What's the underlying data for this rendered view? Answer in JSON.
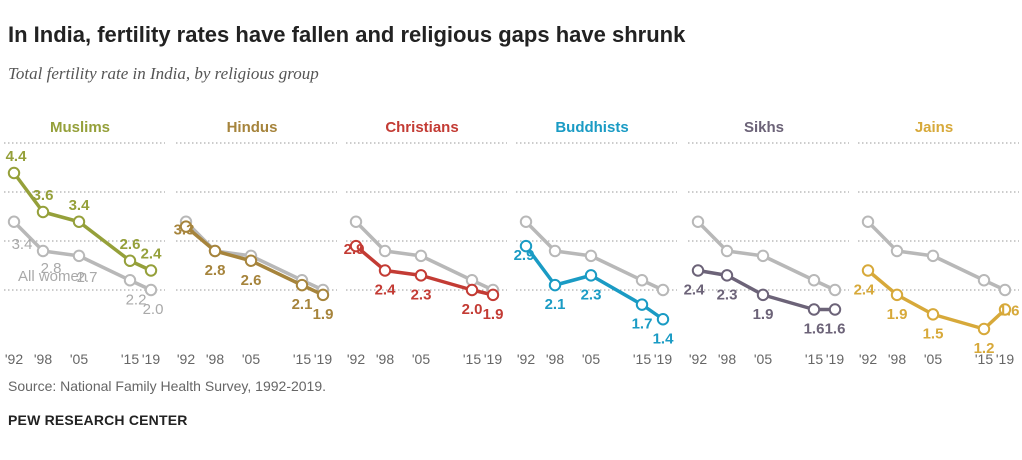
{
  "header": {
    "title": "In India, fertility rates have fallen and religious gaps have shrunk",
    "subtitle": "Total fertility rate in India, by religious group"
  },
  "footer": {
    "source": "Source: National Family Health Survey, 1992-2019.",
    "brand": "PEW RESEARCH CENTER"
  },
  "colors": {
    "all_women": "#b8b8b8",
    "all_women_label": "#a9a9a9",
    "grid": "#9a9a9a",
    "axis_text": "#666666"
  },
  "chart_data": {
    "type": "line",
    "title": "Total fertility rate in India, by religious group",
    "x": [
      1992,
      1998,
      2005,
      2015,
      2019
    ],
    "x_tick_labels": [
      "'92",
      "'98",
      "'05",
      "'15",
      "'19"
    ],
    "ylim": [
      0.5,
      5.0
    ],
    "gridlines": [
      2.0,
      3.0,
      4.0,
      5.0
    ],
    "reference_series": {
      "name": "All women",
      "values": [
        3.4,
        2.8,
        2.7,
        2.2,
        2.0
      ],
      "value_labels": [
        "3.4",
        "2.8",
        "2.7",
        "2.2",
        "2.0"
      ]
    },
    "panels": [
      {
        "name": "Muslims",
        "color": "#95a03a",
        "values": [
          4.4,
          3.6,
          3.4,
          2.6,
          2.4
        ],
        "value_labels": [
          "4.4",
          "3.6",
          "3.4",
          "2.6",
          "2.4"
        ]
      },
      {
        "name": "Hindus",
        "color": "#a6843c",
        "values": [
          3.3,
          2.8,
          2.6,
          2.1,
          1.9
        ],
        "value_labels": [
          "3.3",
          "2.8",
          "2.6",
          "2.1",
          "1.9"
        ]
      },
      {
        "name": "Christians",
        "color": "#c33b34",
        "values": [
          2.9,
          2.4,
          2.3,
          2.0,
          1.9
        ],
        "value_labels": [
          "2.9",
          "2.4",
          "2.3",
          "2.0",
          "1.9"
        ]
      },
      {
        "name": "Buddhists",
        "color": "#1a9bc4",
        "values": [
          2.9,
          2.1,
          2.3,
          1.7,
          1.4
        ],
        "value_labels": [
          "2.9",
          "2.1",
          "2.3",
          "1.7",
          "1.4"
        ]
      },
      {
        "name": "Sikhs",
        "color": "#6c6378",
        "values": [
          2.4,
          2.3,
          1.9,
          1.6,
          1.6
        ],
        "value_labels": [
          "2.4",
          "2.3",
          "1.9",
          "1.6",
          "1.6"
        ]
      },
      {
        "name": "Jains",
        "color": "#d7a93a",
        "values": [
          2.4,
          1.9,
          1.5,
          1.2,
          1.6
        ],
        "value_labels": [
          "2.4",
          "1.9",
          "1.5",
          "1.2",
          "1.6"
        ]
      }
    ]
  }
}
